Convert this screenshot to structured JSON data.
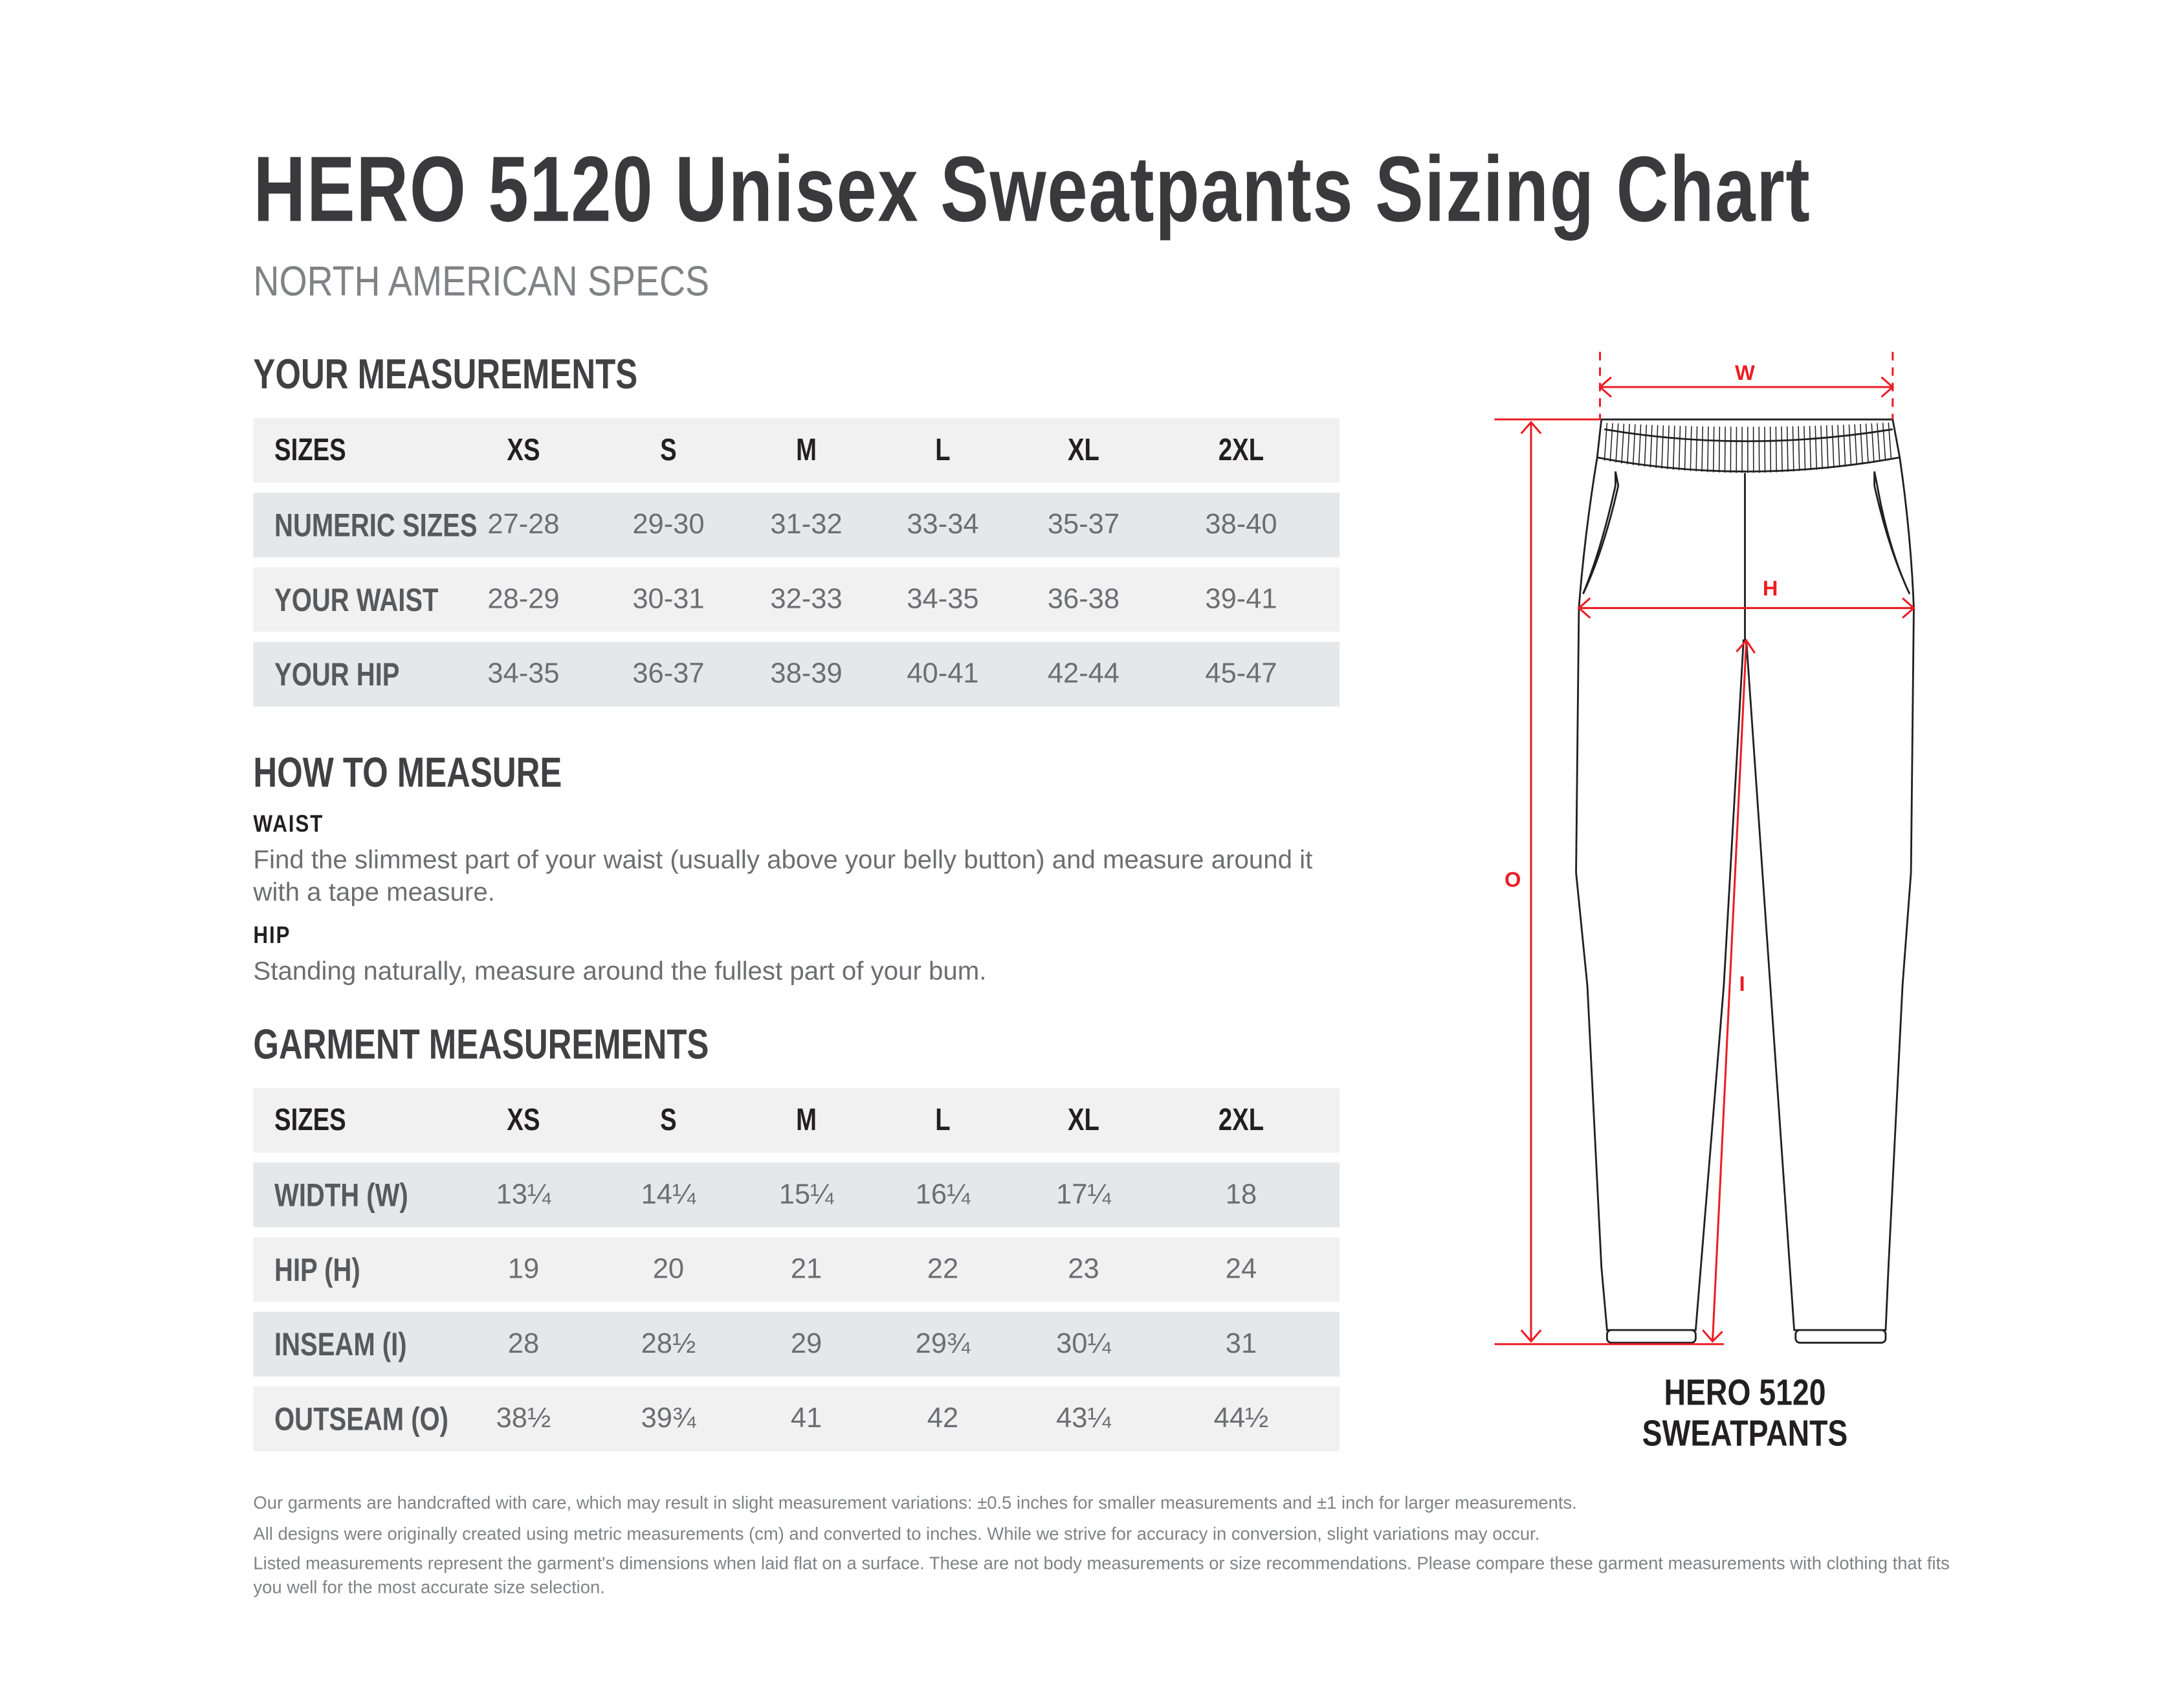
{
  "title": "HERO 5120 Unisex Sweatpants Sizing Chart",
  "subtitle": "NORTH AMERICAN SPECS",
  "your_measurements": {
    "heading": "YOUR MEASUREMENTS",
    "header": [
      "SIZES",
      "XS",
      "S",
      "M",
      "L",
      "XL",
      "2XL"
    ],
    "rows": [
      [
        "NUMERIC SIZES",
        "27-28",
        "29-30",
        "31-32",
        "33-34",
        "35-37",
        "38-40"
      ],
      [
        "YOUR WAIST",
        "28-29",
        "30-31",
        "32-33",
        "34-35",
        "36-38",
        "39-41"
      ],
      [
        "YOUR HIP",
        "34-35",
        "36-37",
        "38-39",
        "40-41",
        "42-44",
        "45-47"
      ]
    ]
  },
  "how_to_measure": {
    "heading": "HOW TO MEASURE",
    "waist_label": "WAIST",
    "waist_text": "Find the slimmest part of your waist (usually above your belly button) and measure around it with a tape measure.",
    "hip_label": "HIP",
    "hip_text": "Standing naturally, measure around the fullest part of your bum."
  },
  "garment_measurements": {
    "heading": "GARMENT MEASUREMENTS",
    "header": [
      "SIZES",
      "XS",
      "S",
      "M",
      "L",
      "XL",
      "2XL"
    ],
    "rows": [
      [
        "WIDTH (W)",
        "13¼",
        "14¼",
        "15¼",
        "16¼",
        "17¼",
        "18"
      ],
      [
        "HIP (H)",
        "19",
        "20",
        "21",
        "22",
        "23",
        "24"
      ],
      [
        "INSEAM (I)",
        "28",
        "28½",
        "29",
        "29¾",
        "30¼",
        "31"
      ],
      [
        "OUTSEAM (O)",
        "38½",
        "39¾",
        "41",
        "42",
        "43¼",
        "44½"
      ]
    ]
  },
  "diagram": {
    "labels": {
      "width": "W",
      "hip": "H",
      "inseam": "I",
      "outseam": "O"
    },
    "caption_line1": "HERO 5120",
    "caption_line2": "SWEATPANTS",
    "accent_color": "#ed1c24"
  },
  "footer": [
    "Our garments are handcrafted with care, which may result in slight measurement variations: ±0.5 inches for smaller measurements and ±1 inch for larger measurements.",
    "All designs were originally created using metric measurements (cm) and converted to inches. While we strive for accuracy in conversion, slight variations may occur.",
    "Listed measurements represent the garment's dimensions when laid flat on a surface. These are not body measurements or size recommendations. Please compare these garment measurements with clothing that fits you well for the most accurate size selection."
  ]
}
